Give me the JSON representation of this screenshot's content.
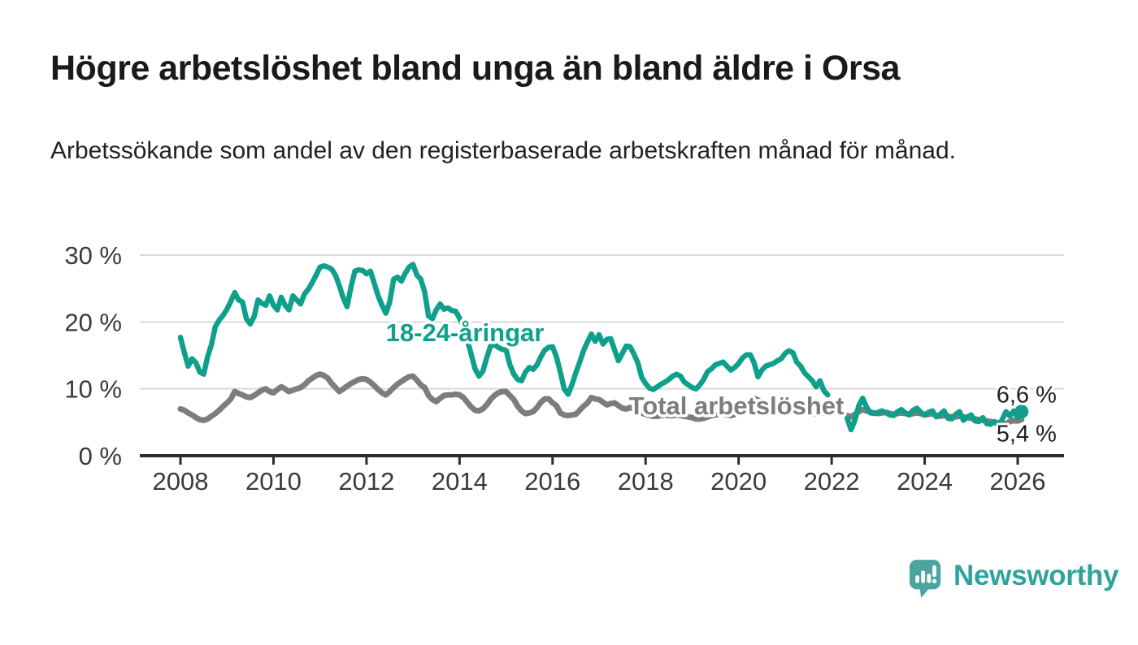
{
  "header": {
    "title": "Högre arbetslöshet bland unga än bland äldre i Orsa",
    "subtitle": "Arbetssökande som andel av den registerbaserade arbetskraften månad för månad."
  },
  "footer": {
    "brand": "Newsworthy"
  },
  "colors": {
    "accent_teal": "#0fa08c",
    "series_gray": "#7d7d7d",
    "logo_teal": "#2ea39e",
    "axis": "#2d2d2d",
    "gridline": "#d9d9d9",
    "tick_text": "#3a3a3a",
    "annotation_text": "#1f1f1f"
  },
  "chart_data": {
    "type": "line",
    "title": "Högre arbetslöshet bland unga än bland äldre i Orsa",
    "subtitle": "Arbetssökande som andel av den registerbaserade arbetskraften månad för månad.",
    "x_unit": "month",
    "x_start": "2008-01",
    "x_end": "2026-02",
    "ylim": [
      0,
      30
    ],
    "grid": "horizontal",
    "y_ticks": [
      {
        "value": 0,
        "label": "0 %"
      },
      {
        "value": 10,
        "label": "10 %"
      },
      {
        "value": 20,
        "label": "20 %"
      },
      {
        "value": 30,
        "label": "30 %"
      }
    ],
    "x_ticks": [
      {
        "value": 2008,
        "label": "2008"
      },
      {
        "value": 2010,
        "label": "2010"
      },
      {
        "value": 2012,
        "label": "2012"
      },
      {
        "value": 2014,
        "label": "2014"
      },
      {
        "value": 2016,
        "label": "2016"
      },
      {
        "value": 2018,
        "label": "2018"
      },
      {
        "value": 2020,
        "label": "2020"
      },
      {
        "value": 2022,
        "label": "2022"
      },
      {
        "value": 2024,
        "label": "2024"
      },
      {
        "value": 2026,
        "label": "2026"
      }
    ],
    "series": [
      {
        "name": "18-24-åringar",
        "inline_label": "18-24-åringar",
        "color": "#0fa08c",
        "end_label": "6,6 %",
        "end_value": 6.6,
        "end_dot": true,
        "values": [
          17.7,
          15.4,
          13.4,
          14.5,
          13.9,
          12.5,
          12.2,
          14.8,
          16.6,
          19.3,
          20.3,
          21.0,
          21.9,
          23.1,
          24.4,
          23.3,
          23.0,
          20.5,
          19.7,
          20.8,
          23.3,
          22.8,
          22.5,
          23.9,
          22.5,
          21.8,
          23.7,
          22.5,
          21.8,
          23.9,
          23.3,
          22.7,
          24.2,
          24.9,
          25.9,
          27.0,
          28.2,
          28.4,
          28.2,
          27.9,
          27.0,
          25.4,
          23.6,
          22.3,
          25.2,
          27.6,
          27.8,
          27.7,
          27.2,
          27.6,
          25.8,
          23.9,
          22.5,
          21.3,
          23.0,
          26.4,
          26.7,
          26.1,
          27.3,
          28.2,
          28.6,
          27.0,
          26.4,
          24.5,
          20.9,
          20.5,
          21.8,
          22.7,
          21.9,
          22.1,
          21.7,
          21.6,
          20.6,
          19.2,
          17.3,
          15.2,
          13.0,
          11.9,
          12.6,
          14.6,
          16.4,
          16.6,
          16.2,
          15.9,
          15.8,
          13.6,
          12.2,
          11.4,
          11.2,
          12.5,
          13.2,
          12.9,
          13.6,
          14.8,
          15.8,
          16.2,
          16.3,
          14.8,
          12.5,
          10.0,
          9.2,
          10.6,
          12.4,
          14.0,
          15.7,
          17.0,
          18.2,
          17.1,
          18.1,
          16.7,
          17.4,
          17.5,
          15.8,
          14.2,
          15.3,
          16.4,
          16.3,
          15.2,
          13.9,
          11.7,
          10.8,
          10.1,
          9.9,
          10.3,
          10.7,
          11.0,
          11.4,
          11.9,
          12.2,
          11.9,
          11.0,
          10.6,
          10.2,
          10.0,
          10.6,
          11.4,
          12.6,
          13.0,
          13.6,
          13.8,
          14.0,
          13.4,
          12.8,
          13.2,
          13.8,
          14.6,
          15.1,
          15.1,
          13.9,
          11.8,
          12.8,
          13.4,
          13.6,
          13.8,
          14.2,
          14.5,
          15.3,
          15.7,
          15.4,
          14.0,
          13.4,
          12.4,
          11.8,
          11.2,
          10.3,
          11.2,
          9.7,
          9.1,
          null,
          null,
          null,
          null,
          5.6,
          3.9,
          5.3,
          7.5,
          8.6,
          7.3,
          6.4,
          6.3,
          6.5,
          6.7,
          6.4,
          6.1,
          6.0,
          6.6,
          6.9,
          6.4,
          6.1,
          6.8,
          7.1,
          6.5,
          6.1,
          6.5,
          6.7,
          5.8,
          6.2,
          6.7,
          5.6,
          5.5,
          6.2,
          6.6,
          5.3,
          5.8,
          6.1,
          5.2,
          5.1,
          5.7,
          4.8,
          4.7,
          5.1,
          4.5,
          5.4,
          6.6,
          5.9,
          6.7,
          5.7,
          6.6
        ]
      },
      {
        "name": "Total arbetslöshet",
        "inline_label": "Total arbetslöshet",
        "color": "#7d7d7d",
        "end_label": "5,4 %",
        "end_value": 5.4,
        "end_dot": false,
        "values": [
          7.0,
          6.8,
          6.4,
          6.1,
          5.7,
          5.4,
          5.3,
          5.5,
          5.9,
          6.3,
          6.8,
          7.4,
          7.9,
          8.5,
          9.6,
          9.3,
          9.1,
          8.8,
          8.7,
          9.0,
          9.4,
          9.8,
          10.0,
          9.6,
          9.4,
          9.9,
          10.3,
          10.0,
          9.6,
          9.8,
          10.0,
          10.2,
          10.6,
          11.2,
          11.6,
          12.0,
          12.2,
          12.0,
          11.6,
          10.8,
          10.2,
          9.6,
          10.0,
          10.4,
          10.8,
          11.1,
          11.4,
          11.5,
          11.4,
          11.0,
          10.5,
          9.9,
          9.4,
          9.1,
          9.6,
          10.2,
          10.7,
          11.1,
          11.5,
          11.8,
          11.9,
          11.3,
          10.6,
          10.2,
          9.0,
          8.4,
          8.1,
          8.6,
          9.0,
          9.1,
          9.1,
          9.2,
          9.1,
          8.7,
          8.0,
          7.3,
          6.8,
          6.7,
          7.0,
          7.6,
          8.4,
          9.0,
          9.4,
          9.6,
          9.6,
          9.0,
          8.4,
          7.4,
          6.7,
          6.3,
          6.4,
          6.6,
          7.2,
          8.0,
          8.5,
          8.5,
          7.9,
          7.5,
          6.4,
          6.1,
          6.0,
          6.1,
          6.2,
          6.8,
          7.4,
          7.9,
          8.7,
          8.5,
          8.4,
          8.0,
          7.6,
          7.8,
          7.9,
          7.5,
          7.1,
          7.0,
          7.2,
          7.0,
          6.7,
          6.4,
          6.2,
          6.0,
          5.9,
          5.9,
          6.0,
          6.1,
          6.0,
          6.0,
          6.1,
          6.0,
          5.9,
          5.8,
          5.7,
          5.5,
          5.5,
          5.6,
          5.8,
          6.0,
          6.1,
          6.2,
          6.2,
          6.1,
          6.0,
          6.2,
          6.6,
          6.9,
          7.6,
          8.4,
          8.6,
          8.3,
          8.1,
          7.9,
          7.7,
          7.5,
          7.4,
          7.5,
          7.7,
          7.8,
          7.6,
          7.3,
          7.0,
          6.8,
          6.6,
          6.4,
          6.2,
          6.3,
          6.4,
          6.3,
          null,
          null,
          null,
          null,
          6.0,
          5.8,
          6.2,
          6.6,
          6.9,
          6.7,
          6.5,
          6.4,
          6.3,
          6.4,
          6.5,
          6.3,
          6.2,
          6.3,
          6.4,
          6.3,
          6.2,
          6.3,
          6.4,
          6.3,
          6.1,
          6.2,
          6.3,
          6.0,
          5.9,
          6.0,
          5.9,
          5.8,
          5.8,
          5.9,
          5.8,
          5.7,
          5.6,
          5.5,
          5.4,
          5.3,
          5.2,
          5.1,
          5.0,
          4.9,
          4.7,
          4.8,
          5.1,
          5.3,
          5.2,
          5.4
        ]
      }
    ],
    "legend_position": "inline-labels",
    "notes": "series break gap in early 2022"
  }
}
